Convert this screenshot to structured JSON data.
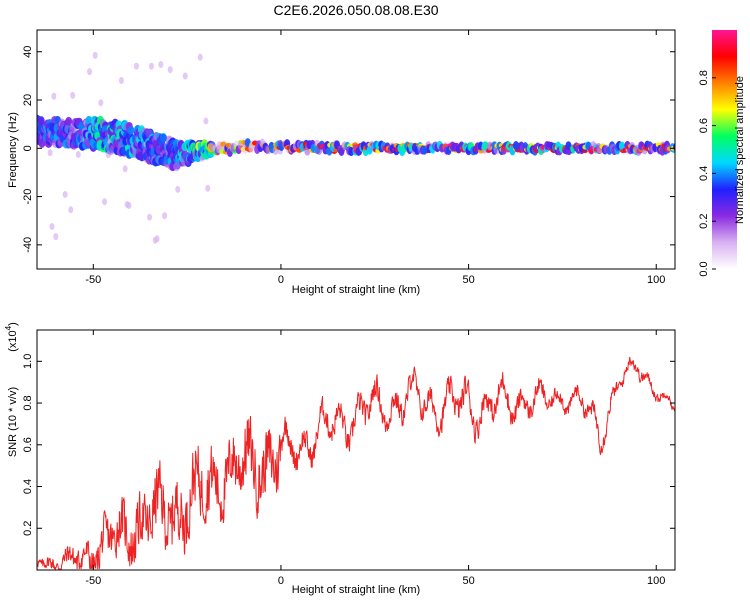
{
  "figure": {
    "title": "C2E6.2026.050.08.08.E30"
  },
  "chart_data": [
    {
      "type": "heatmap",
      "name": "spectrogram",
      "xlabel": "Height of straight line (km)",
      "ylabel": "Frequency (Hz)",
      "xlim": [
        -65,
        105
      ],
      "ylim": [
        -50,
        49
      ],
      "xticks": [
        -50,
        0,
        50,
        100
      ],
      "yticks": [
        -40,
        -20,
        0,
        20,
        40
      ],
      "colorbar": {
        "label": "Normalized spectral amplitude",
        "range": [
          0.0,
          1.0
        ],
        "ticks": [
          0.0,
          0.2,
          0.4,
          0.6,
          0.8
        ],
        "colors": [
          "#ffffff",
          "#d8b2f2",
          "#8a2be2",
          "#2020ff",
          "#00d8ff",
          "#00ff60",
          "#ffff00",
          "#ff8000",
          "#ff0000",
          "#ff1493"
        ]
      },
      "ridge": [
        {
          "x": -62,
          "freq": 7,
          "spread": 5,
          "amp": 0.35
        },
        {
          "x": -55,
          "freq": 6,
          "spread": 5,
          "amp": 0.3
        },
        {
          "x": -48,
          "freq": 6,
          "spread": 6,
          "amp": 0.45
        },
        {
          "x": -42,
          "freq": 4,
          "spread": 6,
          "amp": 0.4
        },
        {
          "x": -35,
          "freq": 1,
          "spread": 6,
          "amp": 0.35
        },
        {
          "x": -28,
          "freq": -3,
          "spread": 5,
          "amp": 0.35
        },
        {
          "x": -22,
          "freq": -1,
          "spread": 3,
          "amp": 0.5
        },
        {
          "x": -15,
          "freq": 0,
          "spread": 2,
          "amp": 0.75
        },
        {
          "x": -8,
          "freq": 1,
          "spread": 2,
          "amp": 0.8
        },
        {
          "x": 0,
          "freq": 0.5,
          "spread": 1.5,
          "amp": 0.85
        },
        {
          "x": 20,
          "freq": 0,
          "spread": 1.5,
          "amp": 0.9
        },
        {
          "x": 50,
          "freq": 0,
          "spread": 1.2,
          "amp": 0.92
        },
        {
          "x": 80,
          "freq": 0,
          "spread": 1.2,
          "amp": 0.92
        },
        {
          "x": 105,
          "freq": 0,
          "spread": 1.5,
          "amp": 0.85
        }
      ]
    },
    {
      "type": "line",
      "name": "snr",
      "xlabel": "Height of straight line (km)",
      "ylabel": "SNR (10 * v/v)",
      "yscale_label": "(x10",
      "yscale_exp": "4",
      "color": "#ee2222",
      "xlim": [
        -65,
        105
      ],
      "ylim": [
        0.0,
        1.15
      ],
      "xticks": [
        -50,
        0,
        50,
        100
      ],
      "yticks": [
        0.2,
        0.4,
        0.6,
        0.8,
        1.0
      ],
      "ytick_labels": [
        "0.2",
        "0.4",
        "0.6",
        "0.8",
        "1.0"
      ],
      "x": [
        -65,
        -60,
        -55,
        -50,
        -45,
        -40,
        -35,
        -30,
        -25,
        -20,
        -15,
        -10,
        -5,
        0,
        5,
        10,
        15,
        20,
        25,
        30,
        35,
        40,
        45,
        50,
        55,
        60,
        65,
        70,
        75,
        80,
        85,
        90,
        95,
        100,
        105
      ],
      "y": [
        0.05,
        0.03,
        0.05,
        0.08,
        0.15,
        0.2,
        0.25,
        0.28,
        0.32,
        0.4,
        0.46,
        0.5,
        0.52,
        0.55,
        0.6,
        0.66,
        0.7,
        0.74,
        0.78,
        0.8,
        0.82,
        0.8,
        0.78,
        0.8,
        0.78,
        0.8,
        0.82,
        0.8,
        0.84,
        0.8,
        0.66,
        0.9,
        0.98,
        0.86,
        0.76
      ],
      "noise": [
        0.04,
        0.05,
        0.08,
        0.12,
        0.16,
        0.18,
        0.2,
        0.22,
        0.22,
        0.22,
        0.2,
        0.22,
        0.22,
        0.22,
        0.2,
        0.2,
        0.2,
        0.2,
        0.2,
        0.2,
        0.2,
        0.18,
        0.2,
        0.22,
        0.2,
        0.2,
        0.16,
        0.14,
        0.12,
        0.12,
        0.16,
        0.1,
        0.1,
        0.08,
        0.06
      ]
    }
  ]
}
